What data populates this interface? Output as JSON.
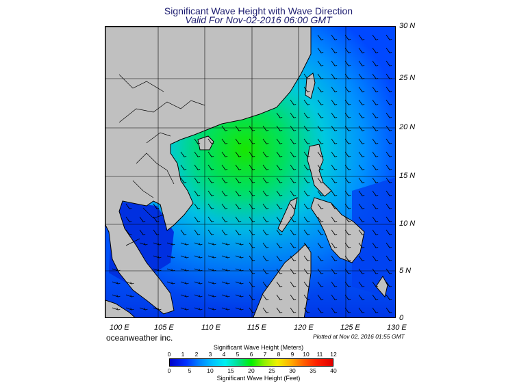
{
  "header": {
    "title": "Significant Wave Height with Wave Direction",
    "subtitle": "Valid For Nov-02-2016 06:00 GMT"
  },
  "map": {
    "lat_labels": [
      "30 N",
      "25 N",
      "20 N",
      "15 N",
      "10 N",
      "5 N",
      "0"
    ],
    "lon_labels": [
      "100 E",
      "105 E",
      "110 E",
      "115 E",
      "120 E",
      "125 E",
      "130 E"
    ],
    "land_color": "#c0c0c0",
    "sea_low_color": "#0050ff",
    "sea_high_color": "#00e000"
  },
  "footer": {
    "brand": "oceanweather inc.",
    "plotted": "Plotted at Nov 02, 2016 01:55 GMT"
  },
  "colorbar": {
    "meters_title": "Significant Wave Height (Meters)",
    "feet_title": "Significant Wave Height (Feet)",
    "meters_ticks": [
      "0",
      "1",
      "2",
      "3",
      "4",
      "5",
      "6",
      "7",
      "8",
      "9",
      "10",
      "11",
      "12"
    ],
    "feet_ticks": [
      "0",
      "5",
      "10",
      "15",
      "20",
      "25",
      "30",
      "35",
      "40"
    ]
  }
}
